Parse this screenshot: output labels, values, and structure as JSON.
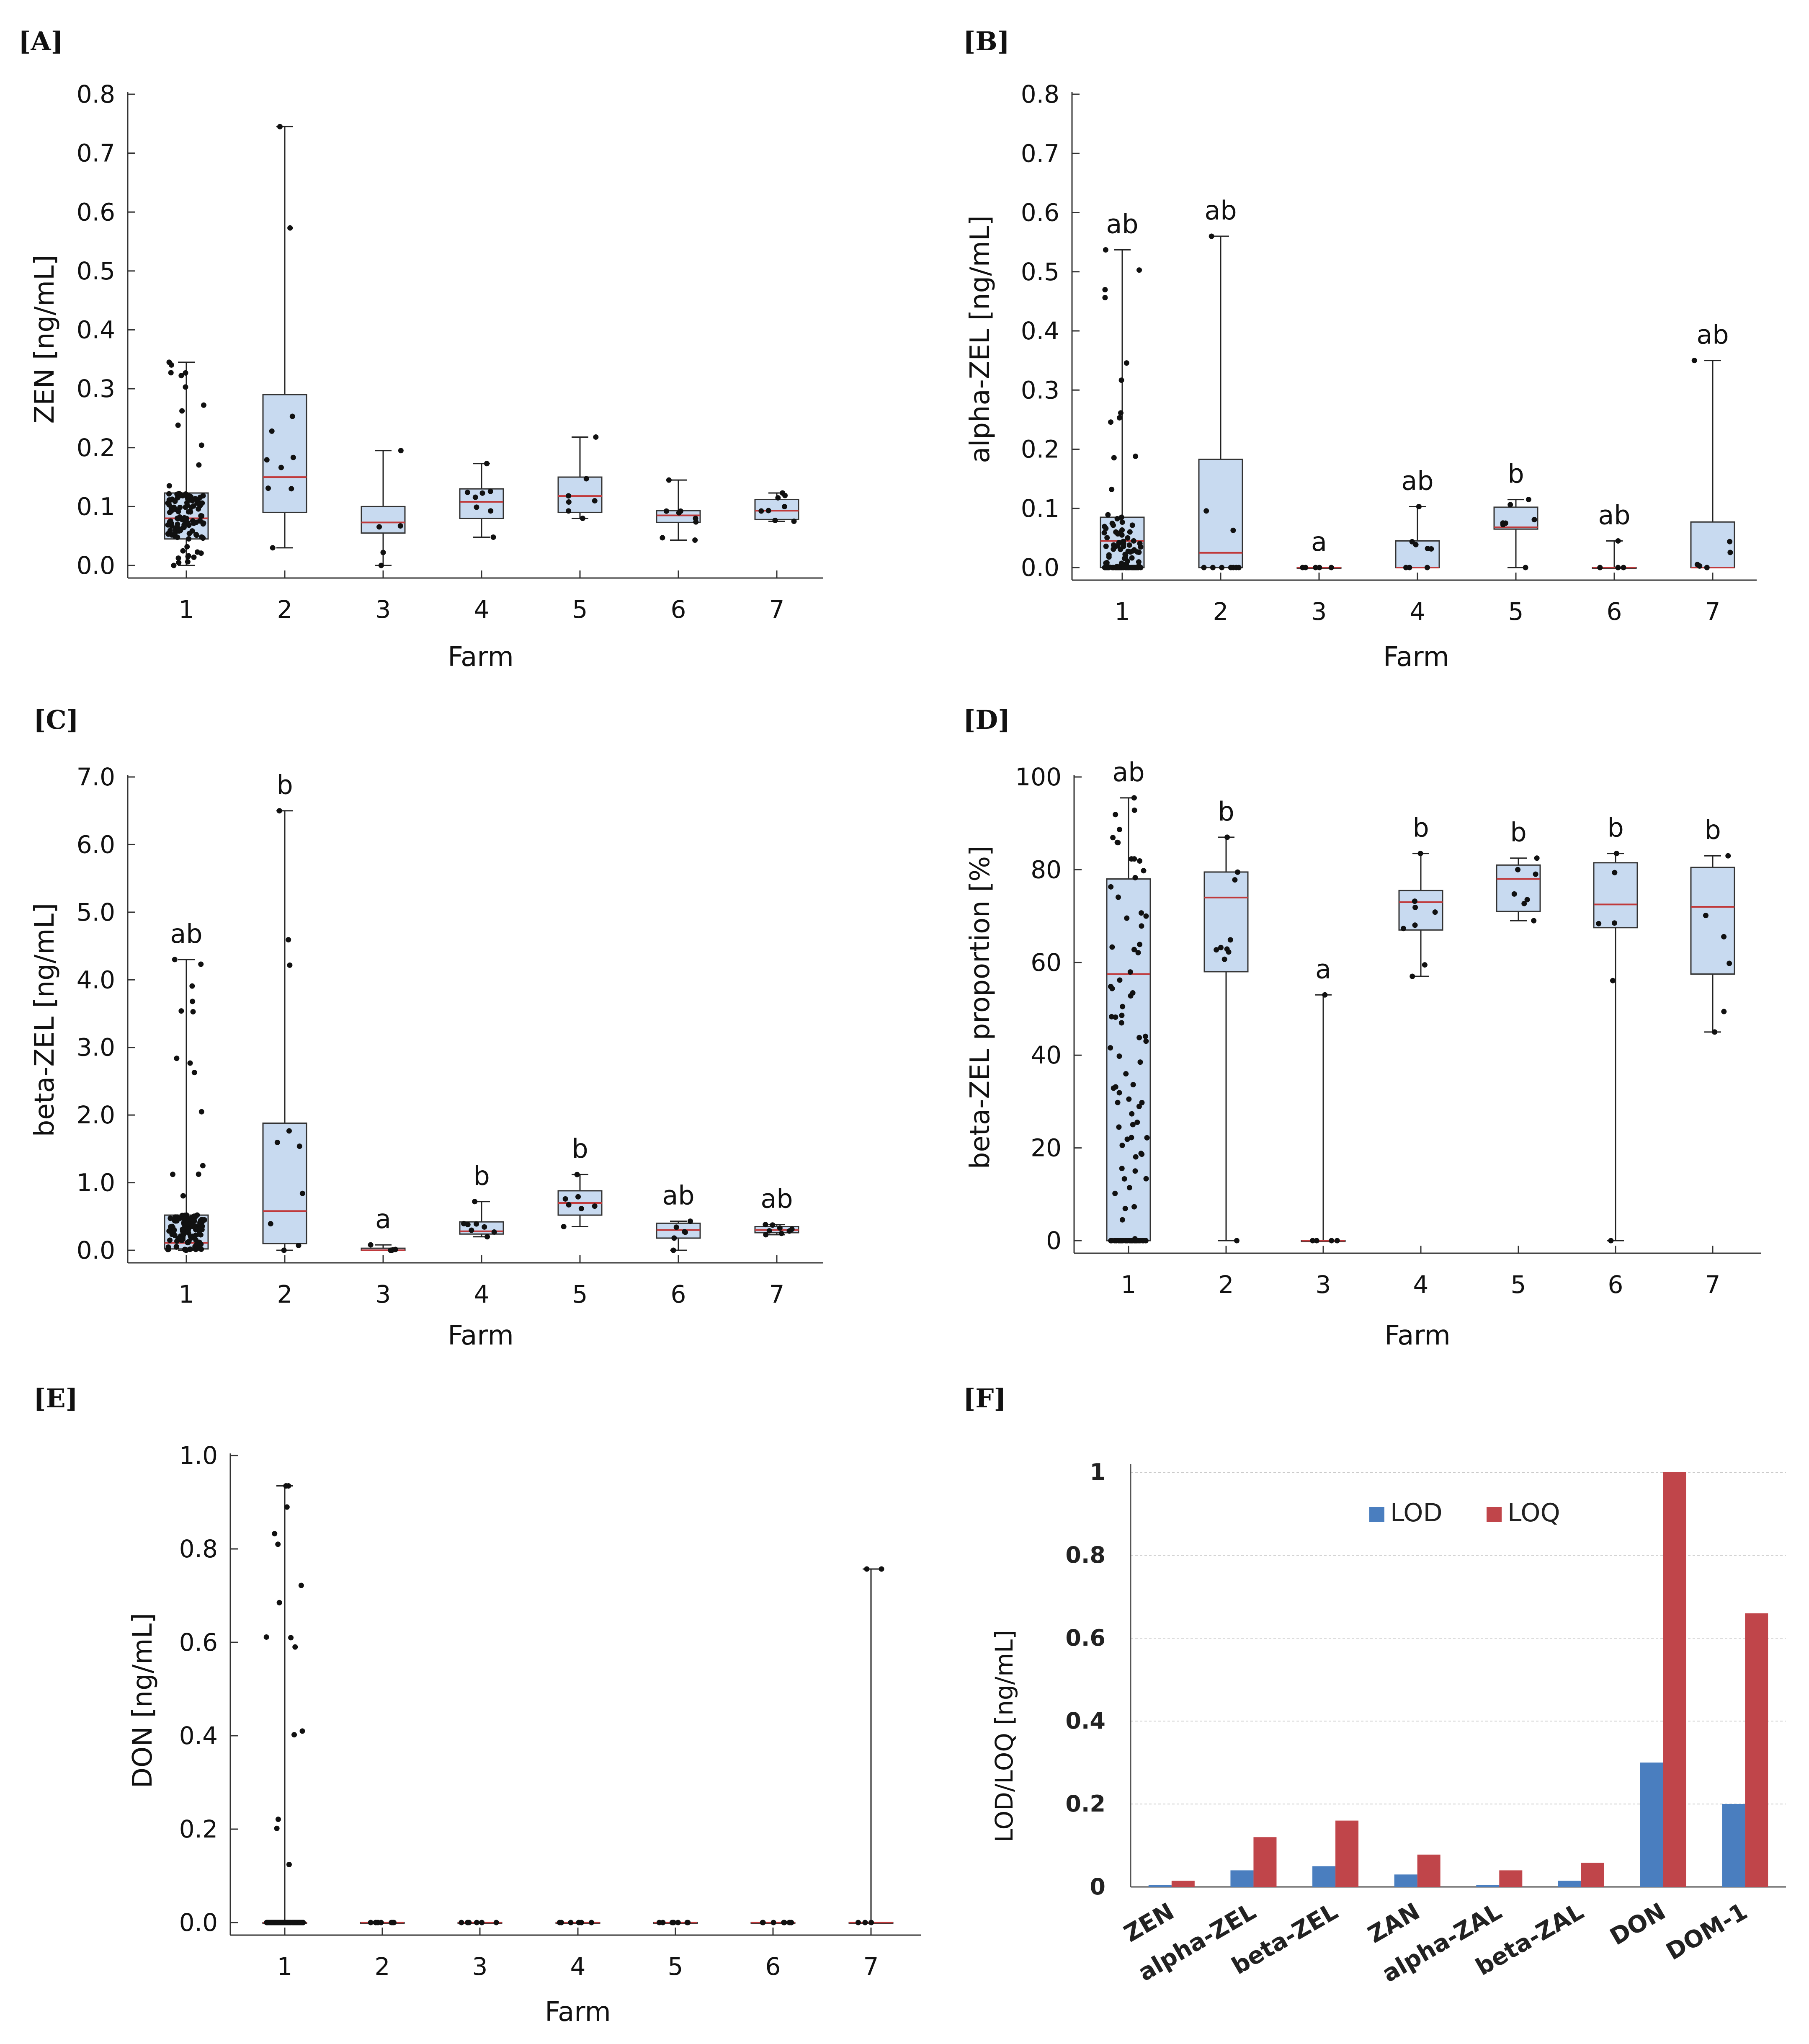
{
  "figure": {
    "panels": [
      {
        "letter": "[A]",
        "x_title": "Farm",
        "y_title": "ZEN [ng/mL]"
      },
      {
        "letter": "[B]",
        "x_title": "Farm",
        "y_title": "alpha-ZEL [ng/mL]"
      },
      {
        "letter": "[C]",
        "x_title": "Farm",
        "y_title": "beta-ZEL [ng/mL]"
      },
      {
        "letter": "[D]",
        "x_title": "Farm",
        "y_title": "beta-ZEL proportion [%]"
      },
      {
        "letter": "[E]",
        "x_title": "Farm",
        "y_title": "DON [ng/mL]"
      },
      {
        "letter": "[F]",
        "x_title": "",
        "y_title": "LOD/LOQ [ng/mL]"
      }
    ]
  },
  "chart_data": [
    {
      "id": "A",
      "type": "box",
      "title": "[A]",
      "xlabel": "Farm",
      "ylabel": "ZEN [ng/mL]",
      "categories": [
        "1",
        "2",
        "3",
        "4",
        "5",
        "6",
        "7"
      ],
      "ylim": [
        0,
        0.8
      ],
      "yticks": [
        0.0,
        0.1,
        0.2,
        0.3,
        0.4,
        0.5,
        0.6,
        0.7,
        0.8
      ],
      "ytick_labels": [
        "0.0",
        "0.1",
        "0.2",
        "0.3",
        "0.4",
        "0.5",
        "0.6",
        "0.7",
        "0.8"
      ],
      "boxes": [
        {
          "min": 0.0,
          "q1": 0.045,
          "median": 0.08,
          "q3": 0.123,
          "max": 0.345
        },
        {
          "min": 0.03,
          "q1": 0.09,
          "median": 0.15,
          "q3": 0.29,
          "max": 0.745
        },
        {
          "min": 0.0,
          "q1": 0.055,
          "median": 0.073,
          "q3": 0.1,
          "max": 0.195
        },
        {
          "min": 0.048,
          "q1": 0.08,
          "median": 0.108,
          "q3": 0.13,
          "max": 0.173
        },
        {
          "min": 0.08,
          "q1": 0.09,
          "median": 0.118,
          "q3": 0.15,
          "max": 0.218
        },
        {
          "min": 0.043,
          "q1": 0.073,
          "median": 0.085,
          "q3": 0.093,
          "max": 0.145
        },
        {
          "min": 0.075,
          "q1": 0.078,
          "median": 0.093,
          "q3": 0.112,
          "max": 0.123
        }
      ],
      "annotations": [
        "",
        "",
        "",
        "",
        "",
        "",
        ""
      ],
      "n_points": [
        120,
        10,
        5,
        8,
        7,
        8,
        8
      ]
    },
    {
      "id": "B",
      "type": "box",
      "title": "[B]",
      "xlabel": "Farm",
      "ylabel": "alpha-ZEL [ng/mL]",
      "categories": [
        "1",
        "2",
        "3",
        "4",
        "5",
        "6",
        "7"
      ],
      "ylim": [
        0,
        0.8
      ],
      "yticks": [
        0.0,
        0.1,
        0.2,
        0.3,
        0.4,
        0.5,
        0.6,
        0.7,
        0.8
      ],
      "ytick_labels": [
        "0.0",
        "0.1",
        "0.2",
        "0.3",
        "0.4",
        "0.5",
        "0.6",
        "0.7",
        "0.8"
      ],
      "boxes": [
        {
          "min": 0.0,
          "q1": 0.0,
          "median": 0.045,
          "q3": 0.085,
          "max": 0.537
        },
        {
          "min": 0.0,
          "q1": 0.0,
          "median": 0.025,
          "q3": 0.183,
          "max": 0.56
        },
        {
          "min": 0.0,
          "q1": 0.0,
          "median": 0.0,
          "q3": 0.0,
          "max": 0.0
        },
        {
          "min": 0.0,
          "q1": 0.0,
          "median": 0.0,
          "q3": 0.045,
          "max": 0.103
        },
        {
          "min": 0.0,
          "q1": 0.065,
          "median": 0.068,
          "q3": 0.102,
          "max": 0.115
        },
        {
          "min": 0.0,
          "q1": 0.0,
          "median": 0.0,
          "q3": 0.0,
          "max": 0.045
        },
        {
          "min": 0.0,
          "q1": 0.0,
          "median": 0.0,
          "q3": 0.077,
          "max": 0.35
        }
      ],
      "annotations": [
        "ab",
        "ab",
        "a",
        "ab",
        "b",
        "ab",
        "ab"
      ],
      "n_points": [
        120,
        10,
        5,
        8,
        7,
        4,
        6
      ]
    },
    {
      "id": "C",
      "type": "box",
      "title": "[C]",
      "xlabel": "Farm",
      "ylabel": "beta-ZEL [ng/mL]",
      "categories": [
        "1",
        "2",
        "3",
        "4",
        "5",
        "6",
        "7"
      ],
      "ylim": [
        0,
        7.0
      ],
      "yticks": [
        0.0,
        1.0,
        2.0,
        3.0,
        4.0,
        5.0,
        6.0,
        7.0
      ],
      "ytick_labels": [
        "0.0",
        "1.0",
        "2.0",
        "3.0",
        "4.0",
        "5.0",
        "6.0",
        "7.0"
      ],
      "boxes": [
        {
          "min": 0.0,
          "q1": 0.02,
          "median": 0.11,
          "q3": 0.52,
          "max": 4.3
        },
        {
          "min": 0.0,
          "q1": 0.1,
          "median": 0.58,
          "q3": 1.88,
          "max": 6.5
        },
        {
          "min": 0.0,
          "q1": 0.0,
          "median": 0.0,
          "q3": 0.03,
          "max": 0.08
        },
        {
          "min": 0.2,
          "q1": 0.24,
          "median": 0.28,
          "q3": 0.42,
          "max": 0.72
        },
        {
          "min": 0.35,
          "q1": 0.52,
          "median": 0.7,
          "q3": 0.88,
          "max": 1.12
        },
        {
          "min": 0.0,
          "q1": 0.18,
          "median": 0.3,
          "q3": 0.4,
          "max": 0.43
        },
        {
          "min": 0.23,
          "q1": 0.26,
          "median": 0.3,
          "q3": 0.35,
          "max": 0.38
        }
      ],
      "annotations": [
        "ab",
        "b",
        "a",
        "b",
        "b",
        "ab",
        "ab"
      ],
      "n_points": [
        120,
        10,
        5,
        8,
        7,
        6,
        8
      ]
    },
    {
      "id": "D",
      "type": "box",
      "title": "[D]",
      "xlabel": "Farm",
      "ylabel": "beta-ZEL proportion [%]",
      "categories": [
        "1",
        "2",
        "3",
        "4",
        "5",
        "6",
        "7"
      ],
      "ylim": [
        0,
        100
      ],
      "yticks": [
        0,
        20,
        40,
        60,
        80,
        100
      ],
      "ytick_labels": [
        "0",
        "20",
        "40",
        "60",
        "80",
        "100"
      ],
      "boxes": [
        {
          "min": 0,
          "q1": 0,
          "median": 57.5,
          "q3": 78,
          "max": 95.5
        },
        {
          "min": 0,
          "q1": 58,
          "median": 74,
          "q3": 79.5,
          "max": 87
        },
        {
          "min": 0,
          "q1": 0,
          "median": 0,
          "q3": 0,
          "max": 53
        },
        {
          "min": 57,
          "q1": 67,
          "median": 73,
          "q3": 75.5,
          "max": 83.5
        },
        {
          "min": 69,
          "q1": 71,
          "median": 78,
          "q3": 81,
          "max": 82.5
        },
        {
          "min": 0,
          "q1": 67.5,
          "median": 72.5,
          "q3": 81.5,
          "max": 83.5
        },
        {
          "min": 45,
          "q1": 57.5,
          "median": 72,
          "q3": 80.5,
          "max": 83
        }
      ],
      "annotations": [
        "ab",
        "b",
        "a",
        "b",
        "b",
        "b",
        "b"
      ],
      "n_points": [
        110,
        10,
        5,
        8,
        7,
        6,
        6
      ]
    },
    {
      "id": "E",
      "type": "box",
      "title": "[E]",
      "xlabel": "Farm",
      "ylabel": "DON [ng/mL]",
      "categories": [
        "1",
        "2",
        "3",
        "4",
        "5",
        "6",
        "7"
      ],
      "ylim": [
        0,
        1.0
      ],
      "yticks": [
        0.0,
        0.2,
        0.4,
        0.6,
        0.8,
        1.0
      ],
      "ytick_labels": [
        "0.0",
        "0.2",
        "0.4",
        "0.6",
        "0.8",
        "1.0"
      ],
      "boxes": [
        {
          "min": 0,
          "q1": 0,
          "median": 0,
          "q3": 0,
          "max": 0.935
        },
        {
          "min": 0,
          "q1": 0,
          "median": 0,
          "q3": 0,
          "max": 0
        },
        {
          "min": 0,
          "q1": 0,
          "median": 0,
          "q3": 0,
          "max": 0
        },
        {
          "min": 0,
          "q1": 0,
          "median": 0,
          "q3": 0,
          "max": 0
        },
        {
          "min": 0,
          "q1": 0,
          "median": 0,
          "q3": 0,
          "max": 0
        },
        {
          "min": 0,
          "q1": 0,
          "median": 0,
          "q3": 0,
          "max": 0
        },
        {
          "min": 0,
          "q1": 0,
          "median": 0,
          "q3": 0,
          "max": 0.757
        }
      ],
      "annotations": [
        "",
        "",
        "",
        "",
        "",
        "",
        ""
      ],
      "extra_points": [
        [
          0.935,
          0.81,
          0.685,
          0.61,
          0.59,
          0.41
        ],
        [],
        [],
        [],
        [],
        [],
        [
          0.757
        ]
      ],
      "n_points": [
        110,
        8,
        6,
        6,
        8,
        8,
        5
      ]
    },
    {
      "id": "F",
      "type": "bar",
      "title": "[F]",
      "xlabel": "",
      "ylabel": "LOD/LOQ [ng/mL]",
      "categories": [
        "ZEN",
        "alpha-ZEL",
        "beta-ZEL",
        "ZAN",
        "alpha-ZAL",
        "beta-ZAL",
        "DON",
        "DOM-1"
      ],
      "ylim": [
        0,
        1
      ],
      "yticks": [
        0,
        0.2,
        0.4,
        0.6,
        0.8,
        1
      ],
      "ytick_labels": [
        "0",
        "0.2",
        "0.4",
        "0.6",
        "0.8",
        "1"
      ],
      "legend": "top-center",
      "series": [
        {
          "name": "LOD",
          "color": "#4a7ebf",
          "values": [
            0.005,
            0.04,
            0.05,
            0.03,
            0.005,
            0.015,
            0.3,
            0.2
          ]
        },
        {
          "name": "LOQ",
          "color": "#c0454a",
          "values": [
            0.015,
            0.12,
            0.16,
            0.078,
            0.04,
            0.058,
            1.0,
            0.66
          ]
        }
      ]
    }
  ]
}
